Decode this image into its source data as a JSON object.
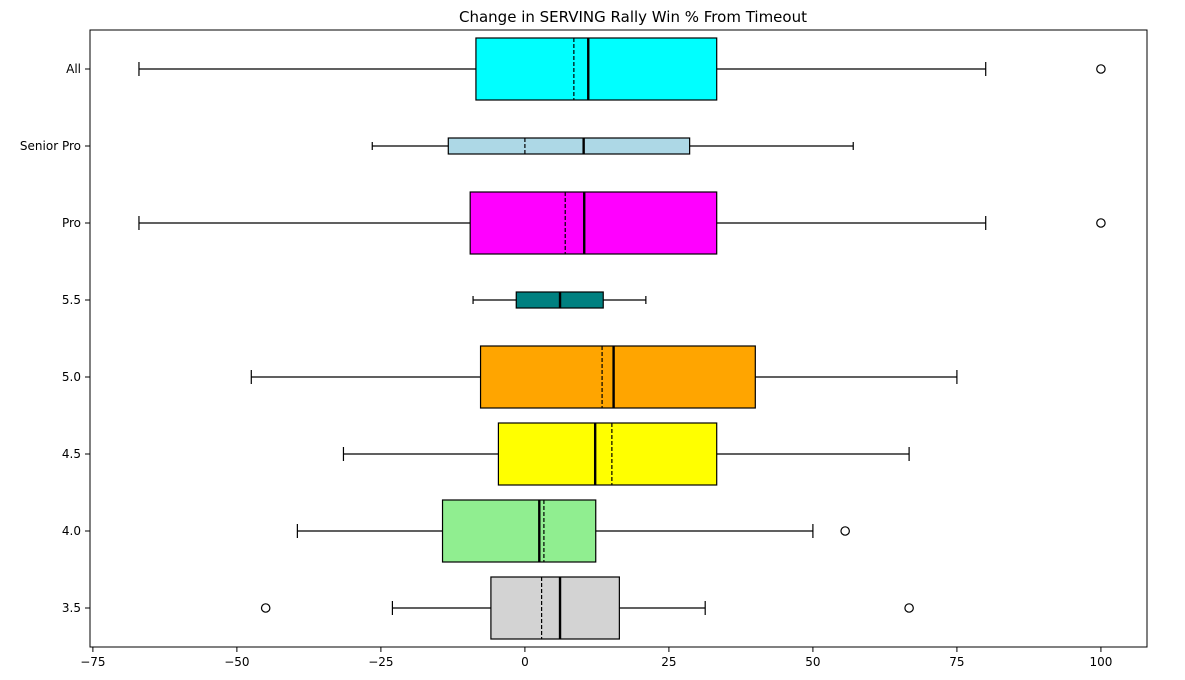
{
  "chart_data": {
    "type": "boxplot",
    "orientation": "horizontal",
    "title": "Change in SERVING Rally Win % From Timeout",
    "xlabel": "",
    "ylabel": "",
    "xlim": [
      -75.5,
      108
    ],
    "xticks": [
      -75,
      -50,
      -25,
      0,
      25,
      50,
      75,
      100
    ],
    "xtick_labels": [
      "−75",
      "−50",
      "−25",
      "0",
      "25",
      "50",
      "75",
      "100"
    ],
    "grid": false,
    "categories": [
      "All",
      "Senior Pro",
      "Pro",
      "5.5",
      "5.0",
      "4.5",
      "4.0",
      "3.5"
    ],
    "boxes": [
      {
        "label": "All",
        "color": "#00ffff",
        "whisker_low": -67,
        "q1": -8.5,
        "median": 11,
        "mean": 8.5,
        "q3": 33.3,
        "whisker_high": 80,
        "outliers": [
          100
        ],
        "width": "wide"
      },
      {
        "label": "Senior Pro",
        "color": "#add8e6",
        "whisker_low": -26.5,
        "q1": -13.3,
        "median": 10.2,
        "mean": 0,
        "q3": 28.6,
        "whisker_high": 57,
        "outliers": [],
        "width": "narrow"
      },
      {
        "label": "Pro",
        "color": "#ff00ff",
        "whisker_low": -67,
        "q1": -9.5,
        "median": 10.3,
        "mean": 7,
        "q3": 33.3,
        "whisker_high": 80,
        "outliers": [
          100
        ],
        "width": "wide"
      },
      {
        "label": "5.5",
        "color": "#008080",
        "whisker_low": -9,
        "q1": -1.5,
        "median": 6.1,
        "mean": 6.1,
        "q3": 13.6,
        "whisker_high": 21,
        "outliers": [],
        "width": "narrow"
      },
      {
        "label": "5.0",
        "color": "#ffa500",
        "whisker_low": -47.5,
        "q1": -7.7,
        "median": 15.4,
        "mean": 13.4,
        "q3": 40,
        "whisker_high": 75,
        "outliers": [],
        "width": "wide"
      },
      {
        "label": "4.5",
        "color": "#ffff00",
        "whisker_low": -31.5,
        "q1": -4.6,
        "median": 12.2,
        "mean": 15.1,
        "q3": 33.3,
        "whisker_high": 66.7,
        "outliers": [],
        "width": "wide"
      },
      {
        "label": "4.0",
        "color": "#90ee90",
        "whisker_low": -39.5,
        "q1": -14.3,
        "median": 2.5,
        "mean": 3.3,
        "q3": 12.3,
        "whisker_high": 50,
        "outliers": [
          55.6
        ],
        "width": "wide"
      },
      {
        "label": "3.5",
        "color": "#d3d3d3",
        "whisker_low": -23,
        "q1": -5.9,
        "median": 6.1,
        "mean": 2.9,
        "q3": 16.4,
        "whisker_high": 31.3,
        "outliers": [
          -45,
          66.7
        ],
        "width": "wide"
      }
    ]
  }
}
